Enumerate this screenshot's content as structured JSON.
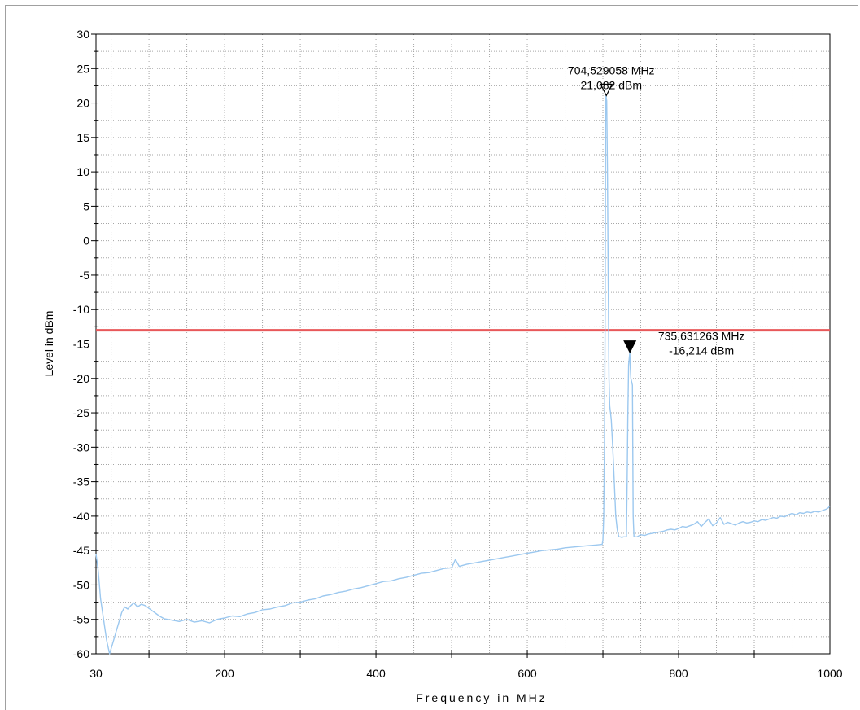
{
  "chart_data": {
    "type": "line",
    "xlabel": "Frequency in MHz",
    "ylabel": "Level in dBm",
    "x_scale": "linear",
    "xlim": [
      30,
      1000
    ],
    "ylim": [
      -60,
      30
    ],
    "x_ticks": [
      30,
      200,
      400,
      600,
      800,
      1000
    ],
    "y_ticks": [
      30,
      25,
      20,
      15,
      10,
      5,
      0,
      -5,
      -10,
      -15,
      -20,
      -25,
      -30,
      -35,
      -40,
      -45,
      -50,
      -55,
      -60
    ],
    "grid": true,
    "line_color": "#9cc8ef",
    "limit_line": {
      "value": -13,
      "color": "#e8585a"
    },
    "markers": [
      {
        "name": "M1",
        "freq_label": "704,529058 MHz",
        "level_label": "21,082 dBm",
        "x": 704.53,
        "y": 21.08,
        "style": "open"
      },
      {
        "name": "M2",
        "freq_label": "735,631263 MHz",
        "level_label": "-16,214 dBm",
        "x": 735.63,
        "y": -16.21,
        "style": "filled"
      }
    ],
    "series": [
      {
        "values": [
          [
            30,
            -45.5
          ],
          [
            33,
            -48
          ],
          [
            36,
            -52
          ],
          [
            40,
            -55
          ],
          [
            44,
            -58
          ],
          [
            48,
            -60
          ],
          [
            52,
            -58.5
          ],
          [
            56,
            -57
          ],
          [
            60,
            -55.5
          ],
          [
            64,
            -54
          ],
          [
            68,
            -53.2
          ],
          [
            72,
            -53.5
          ],
          [
            76,
            -53
          ],
          [
            80,
            -52.6
          ],
          [
            85,
            -53.2
          ],
          [
            90,
            -52.8
          ],
          [
            95,
            -53
          ],
          [
            100,
            -53.4
          ],
          [
            105,
            -53.8
          ],
          [
            110,
            -54.2
          ],
          [
            115,
            -54.6
          ],
          [
            120,
            -54.9
          ],
          [
            130,
            -55.1
          ],
          [
            140,
            -55.3
          ],
          [
            150,
            -55
          ],
          [
            160,
            -55.4
          ],
          [
            170,
            -55.2
          ],
          [
            180,
            -55.5
          ],
          [
            190,
            -55
          ],
          [
            200,
            -54.8
          ],
          [
            210,
            -54.5
          ],
          [
            220,
            -54.6
          ],
          [
            230,
            -54.2
          ],
          [
            240,
            -54
          ],
          [
            250,
            -53.6
          ],
          [
            260,
            -53.5
          ],
          [
            270,
            -53.2
          ],
          [
            280,
            -53
          ],
          [
            290,
            -52.6
          ],
          [
            300,
            -52.5
          ],
          [
            310,
            -52.2
          ],
          [
            320,
            -52
          ],
          [
            330,
            -51.6
          ],
          [
            340,
            -51.4
          ],
          [
            350,
            -51.1
          ],
          [
            360,
            -50.9
          ],
          [
            370,
            -50.6
          ],
          [
            380,
            -50.4
          ],
          [
            390,
            -50.1
          ],
          [
            400,
            -49.8
          ],
          [
            410,
            -49.5
          ],
          [
            420,
            -49.4
          ],
          [
            430,
            -49.1
          ],
          [
            440,
            -48.9
          ],
          [
            450,
            -48.6
          ],
          [
            460,
            -48.3
          ],
          [
            470,
            -48.2
          ],
          [
            480,
            -47.9
          ],
          [
            490,
            -47.6
          ],
          [
            500,
            -47.5
          ],
          [
            505,
            -46.3
          ],
          [
            510,
            -47.3
          ],
          [
            520,
            -47
          ],
          [
            530,
            -46.8
          ],
          [
            540,
            -46.6
          ],
          [
            550,
            -46.4
          ],
          [
            560,
            -46.2
          ],
          [
            570,
            -46
          ],
          [
            580,
            -45.8
          ],
          [
            590,
            -45.6
          ],
          [
            600,
            -45.4
          ],
          [
            610,
            -45.2
          ],
          [
            620,
            -45
          ],
          [
            630,
            -44.9
          ],
          [
            640,
            -44.8
          ],
          [
            650,
            -44.6
          ],
          [
            660,
            -44.5
          ],
          [
            670,
            -44.4
          ],
          [
            680,
            -44.3
          ],
          [
            690,
            -44.2
          ],
          [
            699,
            -44.1
          ],
          [
            700,
            -43.5
          ],
          [
            701,
            -40
          ],
          [
            702,
            -30
          ],
          [
            703,
            -10
          ],
          [
            703.6,
            18
          ],
          [
            704,
            21.08
          ],
          [
            705,
            20.3
          ],
          [
            706,
            10
          ],
          [
            707,
            -5
          ],
          [
            708,
            -20
          ],
          [
            709,
            -24
          ],
          [
            711,
            -26
          ],
          [
            713,
            -30
          ],
          [
            715,
            -35
          ],
          [
            717,
            -40
          ],
          [
            719,
            -42
          ],
          [
            721,
            -43
          ],
          [
            723,
            -43
          ],
          [
            725,
            -43.1
          ],
          [
            727,
            -43
          ],
          [
            729,
            -43
          ],
          [
            731,
            -43
          ],
          [
            732,
            -35
          ],
          [
            733,
            -25
          ],
          [
            734,
            -18
          ],
          [
            735.6,
            -16.2
          ],
          [
            736,
            -18
          ],
          [
            737,
            -20
          ],
          [
            738,
            -20.5
          ],
          [
            739,
            -21
          ],
          [
            740,
            -40
          ],
          [
            741,
            -43
          ],
          [
            745,
            -43
          ],
          [
            750,
            -42.7
          ],
          [
            755,
            -42.8
          ],
          [
            760,
            -42.6
          ],
          [
            765,
            -42.5
          ],
          [
            770,
            -42.4
          ],
          [
            775,
            -42.3
          ],
          [
            780,
            -42.2
          ],
          [
            785,
            -42
          ],
          [
            790,
            -41.9
          ],
          [
            795,
            -42
          ],
          [
            800,
            -41.8
          ],
          [
            805,
            -41.5
          ],
          [
            810,
            -41.6
          ],
          [
            815,
            -41.4
          ],
          [
            820,
            -41.2
          ],
          [
            825,
            -40.8
          ],
          [
            830,
            -41.5
          ],
          [
            835,
            -40.9
          ],
          [
            840,
            -40.4
          ],
          [
            845,
            -41.4
          ],
          [
            850,
            -41
          ],
          [
            855,
            -40.2
          ],
          [
            860,
            -41.2
          ],
          [
            865,
            -40.9
          ],
          [
            870,
            -41.1
          ],
          [
            875,
            -41.3
          ],
          [
            880,
            -41
          ],
          [
            885,
            -40.8
          ],
          [
            890,
            -41
          ],
          [
            895,
            -40.9
          ],
          [
            900,
            -40.7
          ],
          [
            905,
            -40.8
          ],
          [
            910,
            -40.5
          ],
          [
            915,
            -40.6
          ],
          [
            920,
            -40.4
          ],
          [
            925,
            -40.2
          ],
          [
            930,
            -40.3
          ],
          [
            935,
            -40
          ],
          [
            940,
            -40.1
          ],
          [
            945,
            -39.8
          ],
          [
            950,
            -39.6
          ],
          [
            955,
            -39.8
          ],
          [
            960,
            -39.5
          ],
          [
            965,
            -39.6
          ],
          [
            970,
            -39.4
          ],
          [
            975,
            -39.5
          ],
          [
            980,
            -39.3
          ],
          [
            985,
            -39.4
          ],
          [
            990,
            -39.2
          ],
          [
            995,
            -39
          ],
          [
            998,
            -38.8
          ],
          [
            1000,
            -38.5
          ]
        ]
      }
    ]
  }
}
